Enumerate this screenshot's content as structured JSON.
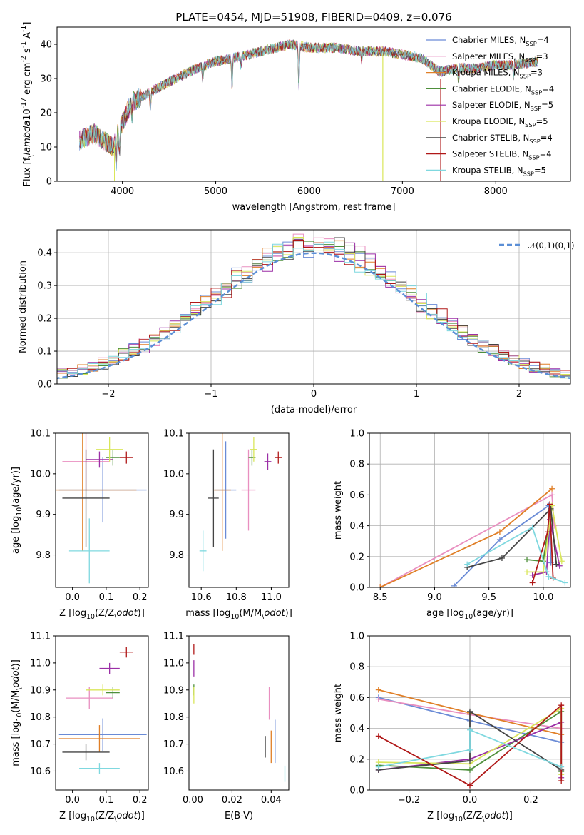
{
  "figure_title": "PLATE=0454, MJD=51908, FIBERID=0409, z=0.076",
  "colors": [
    "#6a8bd6",
    "#e98fc0",
    "#e07f27",
    "#4e8f3b",
    "#9b2fa6",
    "#d9e65a",
    "#444444",
    "#b01818",
    "#7fd8df"
  ],
  "chart_data": [
    {
      "id": "spectrum",
      "type": "line",
      "xlabel": "wavelength [Angstrom, rest frame]",
      "ylabel": "Flux [f$_\\lambda$10$^{-17}$ erg cm$^{-2}$ s$^{-1}$ A$^{-1}$]",
      "xlim": [
        3300,
        8800
      ],
      "ylim": [
        0,
        45
      ],
      "xticks": [
        4000,
        5000,
        6000,
        7000,
        8000
      ],
      "yticks": [
        0,
        10,
        20,
        30,
        40
      ],
      "legend_position": "right",
      "series": [
        {
          "name": "Chabrier MILES, N$_{SSP}$=4",
          "color": "#6a8bd6"
        },
        {
          "name": "Salpeter MILES, N$_{SSP}$=3",
          "color": "#e98fc0"
        },
        {
          "name": "Kroupa MILES, N$_{SSP}$=3",
          "color": "#e07f27"
        },
        {
          "name": "Chabrier ELODIE, N$_{SSP}$=4",
          "color": "#4e8f3b"
        },
        {
          "name": "Salpeter ELODIE, N$_{SSP}$=5",
          "color": "#9b2fa6"
        },
        {
          "name": "Kroupa ELODIE, N$_{SSP}$=5",
          "color": "#d9e65a"
        },
        {
          "name": "Chabrier STELIB, N$_{SSP}$=4",
          "color": "#444444"
        },
        {
          "name": "Salpeter STELIB, N$_{SSP}$=4",
          "color": "#b01818"
        },
        {
          "name": "Kroupa STELIB, N$_{SSP}$=5",
          "color": "#7fd8df"
        }
      ],
      "continuum": {
        "x": [
          3540,
          3700,
          3900,
          3980,
          4100,
          4300,
          4500,
          4800,
          5000,
          5200,
          5500,
          5800,
          6000,
          6300,
          6500,
          6800,
          7000,
          7200,
          7400,
          7600,
          7800,
          8000,
          8200,
          8450
        ],
        "y": [
          12,
          14,
          10,
          16,
          23,
          26,
          29,
          33,
          35,
          36,
          38,
          40,
          39,
          39,
          38,
          38,
          37,
          36,
          32,
          33,
          33,
          34,
          34,
          35
        ]
      }
    },
    {
      "id": "residuals",
      "type": "bar",
      "xlabel": "(data-model)/error",
      "ylabel": "Normed distribution",
      "xlim": [
        -2.5,
        2.5
      ],
      "ylim": [
        0,
        0.47
      ],
      "xticks": [
        -2,
        -1,
        0,
        1,
        2
      ],
      "yticks": [
        0.0,
        0.1,
        0.2,
        0.3,
        0.4
      ],
      "grid": true,
      "legend_position": "top-right",
      "reference_curve": {
        "name": "$\\mathcal{N}(0,1)$",
        "mean": 0,
        "sigma": 1,
        "color": "#5b8fd6"
      }
    },
    {
      "id": "age-vs-Z",
      "type": "scatter",
      "xlabel": "Z [log$_{10}$(Z/Z$_\\odot$)]",
      "ylabel": "age  [log$_{10}$(age/yr)]",
      "xlim": [
        -0.05,
        0.225
      ],
      "ylim": [
        9.72,
        10.1
      ],
      "xticks": [
        0.0,
        0.1,
        0.2
      ],
      "yticks": [
        9.8,
        9.9,
        10.0,
        10.1
      ],
      "points": [
        {
          "x": 0.09,
          "y": 9.96,
          "xerr": 0.13,
          "yerr": 0.08,
          "color": "#6a8bd6"
        },
        {
          "x": 0.04,
          "y": 10.03,
          "xerr": 0.07,
          "yerr": 0.07,
          "color": "#e98fc0"
        },
        {
          "x": 0.03,
          "y": 9.96,
          "xerr": 0.16,
          "yerr": 0.15,
          "color": "#e07f27"
        },
        {
          "x": 0.12,
          "y": 10.04,
          "xerr": 0.02,
          "yerr": 0.02,
          "color": "#4e8f3b"
        },
        {
          "x": 0.08,
          "y": 10.035,
          "xerr": 0.04,
          "yerr": 0.02,
          "color": "#9b2fa6"
        },
        {
          "x": 0.11,
          "y": 10.06,
          "xerr": 0.04,
          "yerr": 0.03,
          "color": "#d9e65a"
        },
        {
          "x": 0.04,
          "y": 9.94,
          "xerr": 0.07,
          "yerr": 0.12,
          "color": "#444444"
        },
        {
          "x": 0.16,
          "y": 10.04,
          "xerr": 0.02,
          "yerr": 0.015,
          "color": "#b01818"
        },
        {
          "x": 0.05,
          "y": 9.81,
          "xerr": 0.06,
          "yerr": 0.08,
          "color": "#7fd8df"
        }
      ]
    },
    {
      "id": "age-vs-mass",
      "type": "scatter",
      "xlabel": "mass [log$_{10}$(M/M$_\\odot$)]",
      "ylabel": "",
      "xlim": [
        10.53,
        11.1
      ],
      "ylim": [
        9.72,
        10.1
      ],
      "xticks": [
        10.6,
        10.8,
        11.0
      ],
      "yticks": [
        9.8,
        9.9,
        10.0,
        10.1
      ],
      "points": [
        {
          "x": 10.74,
          "y": 9.96,
          "xerr": 0.06,
          "yerr": 0.12,
          "color": "#6a8bd6"
        },
        {
          "x": 10.87,
          "y": 9.96,
          "xerr": 0.04,
          "yerr": 0.1,
          "color": "#e98fc0"
        },
        {
          "x": 10.72,
          "y": 9.96,
          "xerr": 0.05,
          "yerr": 0.15,
          "color": "#e07f27"
        },
        {
          "x": 10.89,
          "y": 10.04,
          "xerr": 0.02,
          "yerr": 0.02,
          "color": "#4e8f3b"
        },
        {
          "x": 10.98,
          "y": 10.03,
          "xerr": 0.02,
          "yerr": 0.02,
          "color": "#9b2fa6"
        },
        {
          "x": 10.9,
          "y": 10.06,
          "xerr": 0.02,
          "yerr": 0.03,
          "color": "#d9e65a"
        },
        {
          "x": 10.67,
          "y": 9.94,
          "xerr": 0.03,
          "yerr": 0.12,
          "color": "#444444"
        },
        {
          "x": 11.04,
          "y": 10.04,
          "xerr": 0.02,
          "yerr": 0.015,
          "color": "#b01818"
        },
        {
          "x": 10.61,
          "y": 9.81,
          "xerr": 0.02,
          "yerr": 0.05,
          "color": "#7fd8df"
        }
      ]
    },
    {
      "id": "weight-vs-age",
      "type": "line",
      "xlabel": "age  [log$_{10}$(age/yr)]",
      "ylabel": "mass weight",
      "xlim": [
        8.4,
        10.25
      ],
      "ylim": [
        0,
        1.0
      ],
      "xticks": [
        8.5,
        9.0,
        9.5,
        10.0
      ],
      "yticks": [
        0.0,
        0.2,
        0.4,
        0.6,
        0.8,
        1.0
      ],
      "grid": true,
      "series": [
        {
          "color": "#6a8bd6",
          "x": [
            9.18,
            9.6,
            10.05,
            10.07
          ],
          "y": [
            0.01,
            0.31,
            0.53,
            0.16
          ]
        },
        {
          "color": "#e98fc0",
          "x": [
            8.5,
            10.08,
            10.1
          ],
          "y": [
            0.0,
            0.6,
            0.4
          ]
        },
        {
          "color": "#e07f27",
          "x": [
            8.5,
            9.6,
            10.08
          ],
          "y": [
            0.0,
            0.36,
            0.64
          ]
        },
        {
          "color": "#4e8f3b",
          "x": [
            9.85,
            10.0,
            10.07,
            10.12
          ],
          "y": [
            0.18,
            0.17,
            0.5,
            0.15
          ]
        },
        {
          "color": "#9b2fa6",
          "x": [
            9.9,
            10.03,
            10.06,
            10.15
          ],
          "y": [
            0.08,
            0.1,
            0.44,
            0.14
          ]
        },
        {
          "color": "#d9e65a",
          "x": [
            9.85,
            10.0,
            10.08,
            10.17
          ],
          "y": [
            0.1,
            0.1,
            0.53,
            0.17
          ]
        },
        {
          "color": "#444444",
          "x": [
            9.3,
            9.62,
            10.07,
            10.12
          ],
          "y": [
            0.13,
            0.19,
            0.51,
            0.15
          ]
        },
        {
          "color": "#b01818",
          "x": [
            9.9,
            10.04,
            10.06,
            10.09
          ],
          "y": [
            0.03,
            0.36,
            0.54,
            0.06
          ]
        },
        {
          "color": "#7fd8df",
          "x": [
            9.3,
            9.9,
            10.05,
            10.2
          ],
          "y": [
            0.15,
            0.39,
            0.07,
            0.03
          ]
        }
      ]
    },
    {
      "id": "mass-vs-Z",
      "type": "scatter",
      "xlabel": "Z [log$_{10}$(Z/Z$_\\odot$)]",
      "ylabel": "mass [log$_{10}$(M/M$_\\odot$)]",
      "xlim": [
        -0.05,
        0.225
      ],
      "ylim": [
        10.53,
        11.1
      ],
      "xticks": [
        0.0,
        0.1,
        0.2
      ],
      "yticks": [
        10.6,
        10.7,
        10.8,
        10.9,
        11.0,
        11.1
      ],
      "points": [
        {
          "x": 0.09,
          "y": 10.735,
          "xerr": 0.13,
          "yerr": 0.06,
          "color": "#6a8bd6"
        },
        {
          "x": 0.05,
          "y": 10.87,
          "xerr": 0.07,
          "yerr": 0.04,
          "color": "#e98fc0"
        },
        {
          "x": 0.08,
          "y": 10.72,
          "xerr": 0.12,
          "yerr": 0.05,
          "color": "#e07f27"
        },
        {
          "x": 0.12,
          "y": 10.89,
          "xerr": 0.02,
          "yerr": 0.02,
          "color": "#4e8f3b"
        },
        {
          "x": 0.11,
          "y": 10.98,
          "xerr": 0.03,
          "yerr": 0.02,
          "color": "#9b2fa6"
        },
        {
          "x": 0.09,
          "y": 10.9,
          "xerr": 0.05,
          "yerr": 0.02,
          "color": "#d9e65a"
        },
        {
          "x": 0.04,
          "y": 10.67,
          "xerr": 0.07,
          "yerr": 0.03,
          "color": "#444444"
        },
        {
          "x": 0.16,
          "y": 11.04,
          "xerr": 0.02,
          "yerr": 0.02,
          "color": "#b01818"
        },
        {
          "x": 0.08,
          "y": 10.61,
          "xerr": 0.06,
          "yerr": 0.02,
          "color": "#7fd8df"
        }
      ]
    },
    {
      "id": "mass-vs-EBV",
      "type": "scatter",
      "xlabel": "E(B-V)",
      "ylabel": "",
      "xlim": [
        -0.002,
        0.049
      ],
      "ylim": [
        10.53,
        11.1
      ],
      "xticks": [
        0.0,
        0.02,
        0.04
      ],
      "yticks": [
        10.6,
        10.7,
        10.8,
        10.9,
        11.0,
        11.1
      ],
      "points": [
        {
          "x": 0.042,
          "y": 10.71,
          "yerr": 0.08,
          "color": "#6a8bd6"
        },
        {
          "x": 0.039,
          "y": 10.85,
          "yerr": 0.06,
          "color": "#e98fc0"
        },
        {
          "x": 0.04,
          "y": 10.69,
          "yerr": 0.06,
          "color": "#e07f27"
        },
        {
          "x": 0.0005,
          "y": 10.9,
          "yerr": 0.02,
          "color": "#4e8f3b"
        },
        {
          "x": 0.0005,
          "y": 10.98,
          "yerr": 0.03,
          "color": "#9b2fa6"
        },
        {
          "x": 0.0005,
          "y": 10.88,
          "yerr": 0.03,
          "color": "#d9e65a"
        },
        {
          "x": 0.037,
          "y": 10.69,
          "yerr": 0.04,
          "color": "#444444"
        },
        {
          "x": 0.0005,
          "y": 11.05,
          "yerr": 0.02,
          "color": "#b01818"
        },
        {
          "x": 0.047,
          "y": 10.59,
          "yerr": 0.03,
          "color": "#7fd8df"
        }
      ]
    },
    {
      "id": "weight-vs-Z",
      "type": "line",
      "xlabel": "Z [log$_{10}$(Z/Z$_\\odot$)]",
      "ylabel": "mass weight",
      "xlim": [
        -0.33,
        0.33
      ],
      "ylim": [
        0,
        1.0
      ],
      "xticks": [
        -0.2,
        0.0,
        0.2
      ],
      "yticks": [
        0.0,
        0.2,
        0.4,
        0.6,
        0.8,
        1.0
      ],
      "grid": true,
      "series": [
        {
          "color": "#6a8bd6",
          "x": [
            -0.3,
            0.0,
            0.3
          ],
          "y": [
            0.6,
            0.45,
            0.31
          ]
        },
        {
          "color": "#e98fc0",
          "x": [
            -0.3,
            0.0,
            0.3
          ],
          "y": [
            0.59,
            0.49,
            0.4
          ]
        },
        {
          "color": "#e07f27",
          "x": [
            -0.3,
            0.0,
            0.3
          ],
          "y": [
            0.65,
            0.5,
            0.36
          ]
        },
        {
          "color": "#4e8f3b",
          "x": [
            -0.3,
            0.0,
            0.3,
            0.3
          ],
          "y": [
            0.16,
            0.13,
            0.51,
            0.12
          ]
        },
        {
          "color": "#9b2fa6",
          "x": [
            -0.3,
            0.0,
            0.3,
            0.3
          ],
          "y": [
            0.13,
            0.2,
            0.44,
            0.08
          ]
        },
        {
          "color": "#d9e65a",
          "x": [
            -0.3,
            0.0,
            0.3,
            0.3
          ],
          "y": [
            0.18,
            0.17,
            0.53,
            0.1
          ]
        },
        {
          "color": "#444444",
          "x": [
            -0.3,
            0.0,
            0.0,
            0.3
          ],
          "y": [
            0.13,
            0.19,
            0.51,
            0.13
          ]
        },
        {
          "color": "#b01818",
          "x": [
            -0.3,
            0.0,
            0.3,
            0.3
          ],
          "y": [
            0.35,
            0.03,
            0.55,
            0.06
          ]
        },
        {
          "color": "#7fd8df",
          "x": [
            -0.3,
            0.0,
            0.0,
            0.3
          ],
          "y": [
            0.15,
            0.26,
            0.39,
            0.15
          ]
        }
      ]
    }
  ]
}
